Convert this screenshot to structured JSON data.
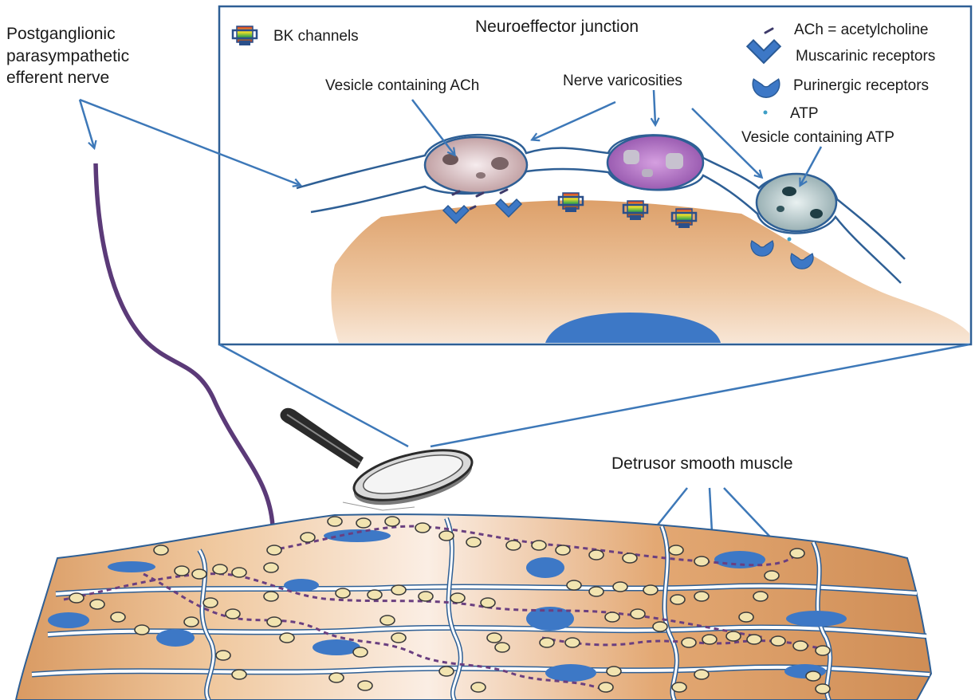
{
  "labels": {
    "nerve": [
      "Postganglionic",
      "parasympathetic",
      "efferent nerve"
    ],
    "junction_title": "Neuroeffector junction",
    "vesicle_ach": "Vesicle containing ACh",
    "varicosities": "Nerve varicosities",
    "vesicle_atp": "Vesicle containing ATP",
    "detrusor": "Detrusor smooth muscle"
  },
  "legend": [
    {
      "icon": "bk-channel-icon",
      "label": "BK channels"
    },
    {
      "icon": "ach-dash-icon",
      "label": "ACh = acetylcholine"
    },
    {
      "icon": "muscarinic-receptor-icon",
      "label": "Muscarinic receptors"
    },
    {
      "icon": "purinergic-receptor-icon",
      "label": "Purinergic receptors"
    },
    {
      "icon": "atp-dot-icon",
      "label": "ATP"
    }
  ],
  "colors": {
    "arrow": "#3d78b8",
    "box_border": "#2e5f95",
    "nerve": "#5b3a78",
    "nucleus": "#3d78c6",
    "muscle": "#e0a877"
  }
}
